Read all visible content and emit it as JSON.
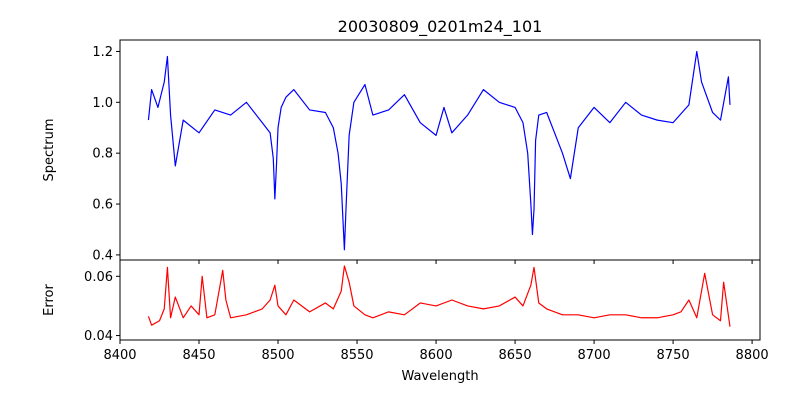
{
  "chart_data": [
    {
      "type": "line",
      "title": "20030809_0201m24_101",
      "xlabel": "",
      "ylabel": "Spectrum",
      "xlim": [
        8400,
        8805
      ],
      "ylim": [
        0.38,
        1.245
      ],
      "xticks": [
        8400,
        8450,
        8500,
        8550,
        8600,
        8650,
        8700,
        8750,
        8800
      ],
      "yticks": [
        0.4,
        0.6,
        0.8,
        1.0,
        1.2
      ],
      "ytick_labels": [
        "0.4",
        "0.6",
        "0.8",
        "1.0",
        "1.2"
      ],
      "color": "#0000ff",
      "series": [
        {
          "x": [
            8418,
            8420,
            8424,
            8428,
            8430,
            8432,
            8435,
            8440,
            8450,
            8460,
            8470,
            8480,
            8490,
            8495,
            8497,
            8498,
            8499,
            8500,
            8502,
            8505,
            8510,
            8520,
            8530,
            8535,
            8538,
            8540,
            8541,
            8542,
            8543,
            8545,
            8548,
            8555,
            8560,
            8570,
            8580,
            8590,
            8600,
            8605,
            8610,
            8620,
            8630,
            8640,
            8650,
            8655,
            8658,
            8660,
            8661,
            8662,
            8663,
            8665,
            8670,
            8680,
            8685,
            8690,
            8700,
            8710,
            8720,
            8730,
            8740,
            8750,
            8760,
            8765,
            8768,
            8775,
            8780,
            8785,
            8786
          ],
          "y": [
            0.93,
            1.05,
            0.98,
            1.08,
            1.18,
            0.95,
            0.75,
            0.93,
            0.88,
            0.97,
            0.95,
            1.0,
            0.92,
            0.88,
            0.78,
            0.62,
            0.75,
            0.9,
            0.98,
            1.02,
            1.05,
            0.97,
            0.96,
            0.9,
            0.8,
            0.68,
            0.55,
            0.42,
            0.58,
            0.87,
            1.0,
            1.07,
            0.95,
            0.97,
            1.03,
            0.92,
            0.87,
            0.98,
            0.88,
            0.95,
            1.05,
            1.0,
            0.98,
            0.92,
            0.8,
            0.6,
            0.48,
            0.58,
            0.85,
            0.95,
            0.96,
            0.8,
            0.7,
            0.9,
            0.98,
            0.92,
            1.0,
            0.95,
            0.93,
            0.92,
            0.99,
            1.2,
            1.08,
            0.96,
            0.93,
            1.1,
            0.99
          ]
        }
      ]
    },
    {
      "type": "line",
      "title": "",
      "xlabel": "Wavelength",
      "ylabel": "Error",
      "xlim": [
        8400,
        8805
      ],
      "ylim": [
        0.0385,
        0.0655
      ],
      "xticks": [
        8400,
        8450,
        8500,
        8550,
        8600,
        8650,
        8700,
        8750,
        8800
      ],
      "xtick_labels": [
        "8400",
        "8450",
        "8500",
        "8550",
        "8600",
        "8650",
        "8700",
        "8750",
        "8800"
      ],
      "yticks": [
        0.04,
        0.06
      ],
      "ytick_labels": [
        "0.04",
        "0.06"
      ],
      "color": "#ff0000",
      "series": [
        {
          "x": [
            8418,
            8420,
            8425,
            8428,
            8430,
            8432,
            8435,
            8440,
            8445,
            8450,
            8452,
            8455,
            8460,
            8465,
            8467,
            8470,
            8480,
            8490,
            8495,
            8498,
            8500,
            8505,
            8510,
            8520,
            8530,
            8535,
            8540,
            8542,
            8545,
            8548,
            8555,
            8560,
            8570,
            8580,
            8590,
            8600,
            8610,
            8620,
            8630,
            8640,
            8650,
            8655,
            8660,
            8662,
            8665,
            8670,
            8680,
            8690,
            8700,
            8710,
            8720,
            8730,
            8740,
            8750,
            8755,
            8760,
            8765,
            8770,
            8775,
            8780,
            8782,
            8786
          ],
          "y": [
            0.0465,
            0.0435,
            0.045,
            0.049,
            0.063,
            0.046,
            0.053,
            0.046,
            0.05,
            0.047,
            0.06,
            0.046,
            0.047,
            0.062,
            0.052,
            0.046,
            0.047,
            0.049,
            0.052,
            0.057,
            0.05,
            0.047,
            0.052,
            0.048,
            0.051,
            0.049,
            0.055,
            0.0635,
            0.058,
            0.05,
            0.047,
            0.046,
            0.048,
            0.047,
            0.051,
            0.05,
            0.052,
            0.05,
            0.049,
            0.05,
            0.053,
            0.05,
            0.057,
            0.063,
            0.051,
            0.049,
            0.047,
            0.047,
            0.046,
            0.047,
            0.047,
            0.046,
            0.046,
            0.047,
            0.048,
            0.052,
            0.046,
            0.061,
            0.047,
            0.045,
            0.058,
            0.043
          ]
        }
      ]
    }
  ]
}
